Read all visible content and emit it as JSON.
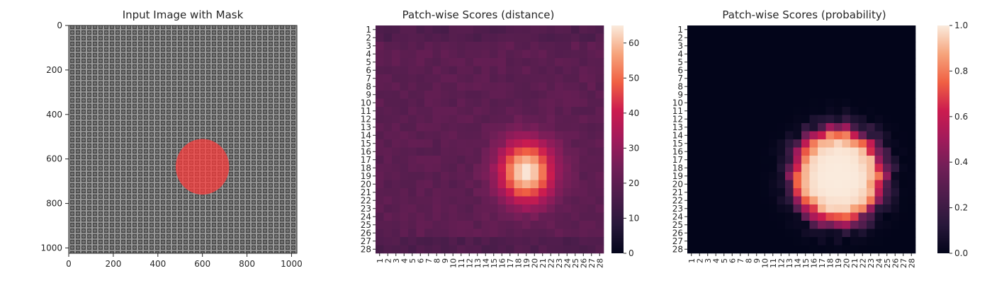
{
  "chart_data": [
    {
      "type": "image",
      "title": "Input Image with Mask",
      "xticks": [
        "0",
        "200",
        "400",
        "600",
        "800",
        "1000"
      ],
      "xtick_values": [
        0,
        200,
        400,
        600,
        800,
        1000
      ],
      "yticks": [
        "0",
        "200",
        "400",
        "600",
        "800",
        "1000"
      ],
      "ytick_values": [
        0,
        200,
        400,
        600,
        800,
        1000
      ],
      "xlim": [
        0,
        1024
      ],
      "ylim": [
        1024,
        0
      ],
      "background": "gray woven fabric texture",
      "mask_color": "#ff3b3b",
      "mask_region": {
        "center_x": 600,
        "center_y": 635,
        "radius_x": 120,
        "radius_y": 125
      }
    },
    {
      "type": "heatmap",
      "title": "Patch-wise Scores (distance)",
      "rows": [
        "1",
        "2",
        "3",
        "4",
        "5",
        "6",
        "7",
        "8",
        "9",
        "10",
        "11",
        "12",
        "13",
        "14",
        "15",
        "16",
        "17",
        "18",
        "19",
        "20",
        "21",
        "22",
        "23",
        "24",
        "25",
        "26",
        "27",
        "28"
      ],
      "cols": [
        "1",
        "2",
        "3",
        "4",
        "5",
        "6",
        "7",
        "8",
        "9",
        "10",
        "11",
        "12",
        "13",
        "14",
        "15",
        "16",
        "17",
        "18",
        "19",
        "20",
        "21",
        "22",
        "23",
        "24",
        "25",
        "26",
        "27",
        "28"
      ],
      "colormap": "rocket",
      "vmin": 0,
      "vmax": 65,
      "colorbar_ticks": [
        "0",
        "10",
        "20",
        "30",
        "40",
        "50",
        "60"
      ],
      "colorbar_tick_values": [
        0,
        10,
        20,
        30,
        40,
        50,
        60
      ],
      "base_value": 20,
      "hotspot": {
        "center_row": 18.5,
        "center_col": 19,
        "peak": 65
      },
      "description_values": "background ~18-22; hotspot rows 13-26, cols 15-24, peak ~65 at rows 18-20, cols 18-20"
    },
    {
      "type": "heatmap",
      "title": "Patch-wise Scores (probability)",
      "rows": [
        "1",
        "2",
        "3",
        "4",
        "5",
        "6",
        "7",
        "8",
        "9",
        "10",
        "11",
        "12",
        "13",
        "14",
        "15",
        "16",
        "17",
        "18",
        "19",
        "20",
        "21",
        "22",
        "23",
        "24",
        "25",
        "26",
        "27",
        "28"
      ],
      "cols": [
        "1",
        "2",
        "3",
        "4",
        "5",
        "6",
        "7",
        "8",
        "9",
        "10",
        "11",
        "12",
        "13",
        "14",
        "15",
        "16",
        "17",
        "18",
        "19",
        "20",
        "21",
        "22",
        "23",
        "24",
        "25",
        "26",
        "27",
        "28"
      ],
      "colormap": "rocket",
      "vmin": 0.0,
      "vmax": 1.0,
      "colorbar_ticks": [
        "0.0",
        "0.2",
        "0.4",
        "0.6",
        "0.8",
        "1.0"
      ],
      "colorbar_tick_values": [
        0.0,
        0.2,
        0.4,
        0.6,
        0.8,
        1.0
      ],
      "hotspot": {
        "center_row": 19,
        "center_col": 19,
        "peak": 1.0
      },
      "description_values": "background ~0; values ~0.9-1.0 in rows 14-24, cols 14-24; ring of 0.1-0.5 around it"
    }
  ]
}
